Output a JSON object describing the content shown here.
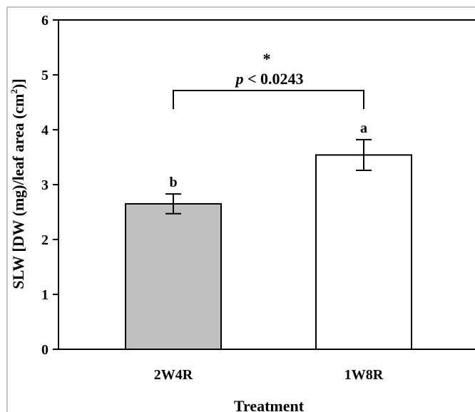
{
  "chart_data": {
    "type": "bar",
    "title": "",
    "xlabel": "Treatment",
    "ylabel_prefix": "SLW [DW (mg)/leaf area (cm",
    "ylabel_exponent": "2",
    "ylabel_suffix": ")]",
    "categories": [
      "2W4R",
      "1W8R"
    ],
    "values": [
      2.65,
      3.54
    ],
    "errors": [
      0.18,
      0.28
    ],
    "bar_colors": [
      "#c0c0c0",
      "#ffffff"
    ],
    "letters": [
      "b",
      "a"
    ],
    "ylim": [
      0,
      6
    ],
    "yticks": [
      "0",
      "1",
      "2",
      "3",
      "4",
      "5",
      "6"
    ],
    "grid": false,
    "significance": {
      "star": "*",
      "p_symbol": "p",
      "p_rest": " < 0.0243"
    }
  }
}
